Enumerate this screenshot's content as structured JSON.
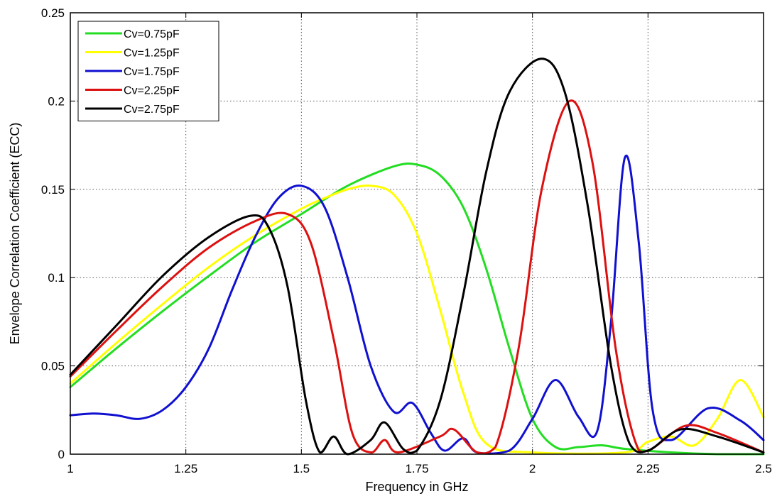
{
  "chart_data": {
    "type": "line",
    "title": "",
    "xlabel": "Frequency in GHz",
    "ylabel": "Envelope Correlation Coefficient (ECC)",
    "xlim": [
      1,
      2.5
    ],
    "ylim": [
      0,
      0.25
    ],
    "xticks": [
      1,
      1.25,
      1.5,
      1.75,
      2,
      2.25,
      2.5
    ],
    "xtick_labels": [
      "1",
      "1.25",
      "1.5",
      "1.75",
      "2",
      "2.25",
      "2.5"
    ],
    "yticks": [
      0,
      0.05,
      0.1,
      0.15,
      0.2,
      0.25
    ],
    "ytick_labels": [
      "0",
      "0.05",
      "0.1",
      "0.15",
      "0.2",
      "0.25"
    ],
    "grid": true,
    "legend_position": "top-left",
    "series": [
      {
        "name": "Cv=0.75pF",
        "color": "#22dd22",
        "points": [
          [
            1.0,
            0.038
          ],
          [
            1.1,
            0.06
          ],
          [
            1.2,
            0.081
          ],
          [
            1.3,
            0.101
          ],
          [
            1.4,
            0.12
          ],
          [
            1.5,
            0.136
          ],
          [
            1.6,
            0.152
          ],
          [
            1.7,
            0.163
          ],
          [
            1.75,
            0.164
          ],
          [
            1.8,
            0.158
          ],
          [
            1.85,
            0.14
          ],
          [
            1.9,
            0.105
          ],
          [
            1.95,
            0.06
          ],
          [
            2.0,
            0.02
          ],
          [
            2.05,
            0.004
          ],
          [
            2.1,
            0.004
          ],
          [
            2.15,
            0.005
          ],
          [
            2.2,
            0.003
          ],
          [
            2.3,
            0.001
          ],
          [
            2.4,
            0.0
          ],
          [
            2.5,
            0.0
          ]
        ]
      },
      {
        "name": "Cv=1.25pF",
        "color": "#ffff00",
        "points": [
          [
            1.0,
            0.04
          ],
          [
            1.1,
            0.063
          ],
          [
            1.2,
            0.085
          ],
          [
            1.3,
            0.106
          ],
          [
            1.4,
            0.124
          ],
          [
            1.5,
            0.139
          ],
          [
            1.55,
            0.145
          ],
          [
            1.6,
            0.15
          ],
          [
            1.65,
            0.152
          ],
          [
            1.7,
            0.147
          ],
          [
            1.75,
            0.125
          ],
          [
            1.8,
            0.082
          ],
          [
            1.85,
            0.035
          ],
          [
            1.9,
            0.006
          ],
          [
            2.0,
            0.001
          ],
          [
            2.2,
            0.001
          ],
          [
            2.25,
            0.007
          ],
          [
            2.3,
            0.01
          ],
          [
            2.35,
            0.005
          ],
          [
            2.4,
            0.02
          ],
          [
            2.45,
            0.042
          ],
          [
            2.5,
            0.021
          ]
        ]
      },
      {
        "name": "Cv=1.75pF",
        "color": "#1010d0",
        "points": [
          [
            1.0,
            0.022
          ],
          [
            1.05,
            0.023
          ],
          [
            1.1,
            0.022
          ],
          [
            1.15,
            0.02
          ],
          [
            1.2,
            0.025
          ],
          [
            1.25,
            0.038
          ],
          [
            1.3,
            0.06
          ],
          [
            1.35,
            0.093
          ],
          [
            1.4,
            0.123
          ],
          [
            1.45,
            0.145
          ],
          [
            1.5,
            0.152
          ],
          [
            1.55,
            0.14
          ],
          [
            1.6,
            0.1
          ],
          [
            1.65,
            0.05
          ],
          [
            1.7,
            0.024
          ],
          [
            1.74,
            0.029
          ],
          [
            1.78,
            0.012
          ],
          [
            1.81,
            0.002
          ],
          [
            1.85,
            0.009
          ],
          [
            1.88,
            0.001
          ],
          [
            1.95,
            0.002
          ],
          [
            2.0,
            0.02
          ],
          [
            2.05,
            0.042
          ],
          [
            2.1,
            0.021
          ],
          [
            2.14,
            0.013
          ],
          [
            2.17,
            0.075
          ],
          [
            2.2,
            0.168
          ],
          [
            2.23,
            0.12
          ],
          [
            2.26,
            0.025
          ],
          [
            2.3,
            0.008
          ],
          [
            2.38,
            0.026
          ],
          [
            2.45,
            0.019
          ],
          [
            2.5,
            0.008
          ]
        ]
      },
      {
        "name": "Cv=2.25pF",
        "color": "#dd1010",
        "points": [
          [
            1.0,
            0.044
          ],
          [
            1.1,
            0.07
          ],
          [
            1.2,
            0.095
          ],
          [
            1.3,
            0.117
          ],
          [
            1.4,
            0.132
          ],
          [
            1.47,
            0.136
          ],
          [
            1.52,
            0.12
          ],
          [
            1.57,
            0.065
          ],
          [
            1.61,
            0.012
          ],
          [
            1.65,
            0.001
          ],
          [
            1.68,
            0.008
          ],
          [
            1.71,
            0.001
          ],
          [
            1.8,
            0.01
          ],
          [
            1.83,
            0.014
          ],
          [
            1.88,
            0.001
          ],
          [
            1.92,
            0.004
          ],
          [
            1.97,
            0.06
          ],
          [
            2.02,
            0.15
          ],
          [
            2.08,
            0.2
          ],
          [
            2.13,
            0.165
          ],
          [
            2.18,
            0.06
          ],
          [
            2.22,
            0.009
          ],
          [
            2.25,
            0.002
          ],
          [
            2.33,
            0.016
          ],
          [
            2.4,
            0.012
          ],
          [
            2.5,
            0.001
          ]
        ]
      },
      {
        "name": "Cv=2.75pF",
        "color": "#000000",
        "points": [
          [
            1.0,
            0.045
          ],
          [
            1.1,
            0.073
          ],
          [
            1.2,
            0.101
          ],
          [
            1.3,
            0.123
          ],
          [
            1.39,
            0.135
          ],
          [
            1.43,
            0.128
          ],
          [
            1.47,
            0.095
          ],
          [
            1.51,
            0.03
          ],
          [
            1.54,
            0.001
          ],
          [
            1.57,
            0.01
          ],
          [
            1.6,
            0.0
          ],
          [
            1.65,
            0.008
          ],
          [
            1.68,
            0.018
          ],
          [
            1.72,
            0.003
          ],
          [
            1.75,
            0.002
          ],
          [
            1.8,
            0.03
          ],
          [
            1.85,
            0.09
          ],
          [
            1.9,
            0.16
          ],
          [
            1.95,
            0.205
          ],
          [
            2.02,
            0.224
          ],
          [
            2.07,
            0.205
          ],
          [
            2.12,
            0.14
          ],
          [
            2.17,
            0.05
          ],
          [
            2.21,
            0.006
          ],
          [
            2.25,
            0.002
          ],
          [
            2.32,
            0.014
          ],
          [
            2.4,
            0.01
          ],
          [
            2.5,
            0.001
          ]
        ]
      }
    ]
  }
}
